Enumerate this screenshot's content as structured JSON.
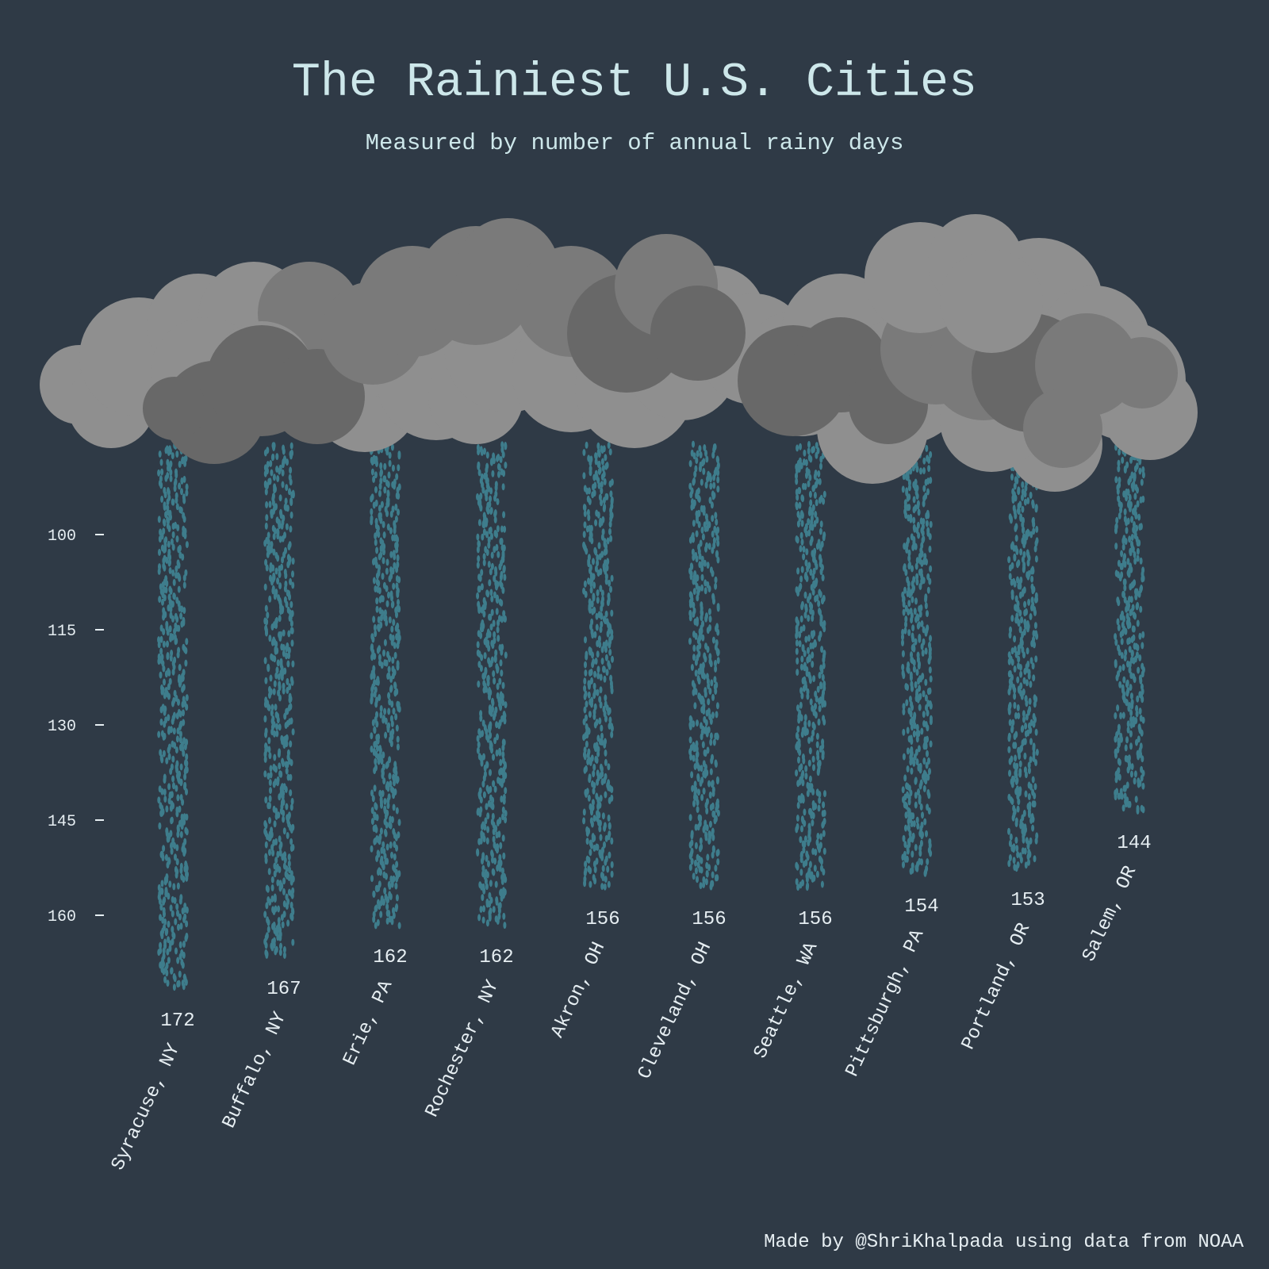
{
  "title": "The Rainiest U.S. Cities",
  "subtitle": "Measured by number of annual rainy days",
  "credit": "Made by @ShriKhalpada using data from NOAA",
  "colors": {
    "background": "#2f3a46",
    "rain": "#3e7d8c",
    "title": "#cde7ea",
    "labels": "#e6eef2",
    "cloud_light": "#8f8f8f",
    "cloud_mid": "#7a7a7a",
    "cloud_dark": "#686868"
  },
  "chart_data": {
    "type": "bar",
    "title": "The Rainiest U.S. Cities",
    "subtitle": "Measured by number of annual rainy days",
    "xlabel": "",
    "ylabel": "",
    "categories": [
      "Syracuse, NY",
      "Buffalo, NY",
      "Erie, PA",
      "Rochester, NY",
      "Akron, OH",
      "Cleveland, OH",
      "Seattle, WA",
      "Pittsburgh, PA",
      "Portland, OR",
      "Salem, OR"
    ],
    "values": [
      172,
      167,
      162,
      162,
      156,
      156,
      156,
      154,
      153,
      144
    ],
    "value_labels": [
      "172",
      "167",
      "162",
      "162",
      "156",
      "156",
      "156",
      "154",
      "153",
      "144"
    ],
    "y_ticks": [
      100,
      115,
      130,
      145,
      160
    ],
    "y_tick_labels": [
      "100",
      "115",
      "130",
      "145",
      "160"
    ],
    "y_inverted": true,
    "grid": false,
    "legend": "none",
    "bar_style": "raindrops falling from clouds"
  }
}
